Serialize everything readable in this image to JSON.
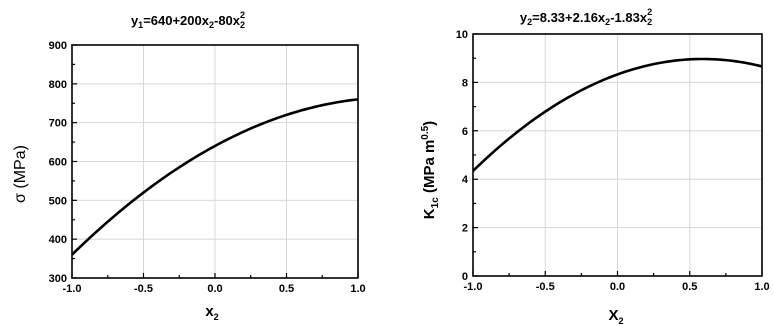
{
  "chart_data": [
    {
      "type": "line",
      "title_parts": {
        "a": "y",
        "b": "1",
        "c": "=640+200x",
        "d": "2",
        "e": "-80x",
        "f": "2",
        "g": "2"
      },
      "xlabel_parts": {
        "base": "x",
        "sub": "2"
      },
      "ylabel": "σ (MPa)",
      "xlim": [
        -1.0,
        1.0
      ],
      "ylim": [
        300,
        900
      ],
      "xticks": [
        "-1.0",
        "-0.5",
        "0.0",
        "0.5",
        "1.0"
      ],
      "yticks": [
        "300",
        "400",
        "500",
        "600",
        "700",
        "800",
        "900"
      ],
      "coef": [
        640,
        200,
        -80
      ],
      "grid": true,
      "series": [
        {
          "x": [
            -1.0,
            -0.75,
            -0.5,
            -0.25,
            0.0,
            0.25,
            0.5,
            0.75,
            1.0
          ],
          "y": [
            360,
            445,
            520,
            585,
            640,
            685,
            720,
            745,
            760
          ]
        }
      ]
    },
    {
      "type": "line",
      "title_parts": {
        "a": "y",
        "b": "2",
        "c": "=8.33+2.16x",
        "d": "2",
        "e": "-1.83x",
        "f": "2",
        "g": "2"
      },
      "xlabel_parts": {
        "base": "X",
        "sub": "2"
      },
      "ylabel_parts": {
        "a": "K",
        "b": "1c",
        "c": " (MPa m",
        "d": "0.5",
        "e": ")"
      },
      "xlim": [
        -1.0,
        1.0
      ],
      "ylim": [
        0,
        10
      ],
      "xticks": [
        "-1.0",
        "-0.5",
        "0.0",
        "0.5",
        "1.0"
      ],
      "yticks": [
        "0",
        "2",
        "4",
        "6",
        "8",
        "10"
      ],
      "coef": [
        8.33,
        2.16,
        -1.83
      ],
      "grid": true,
      "series": [
        {
          "x": [
            -1.0,
            -0.75,
            -0.5,
            -0.25,
            0.0,
            0.25,
            0.5,
            0.75,
            1.0
          ],
          "y": [
            4.34,
            5.68,
            6.79,
            7.68,
            8.33,
            8.76,
            8.96,
            8.92,
            8.66
          ]
        }
      ]
    }
  ]
}
